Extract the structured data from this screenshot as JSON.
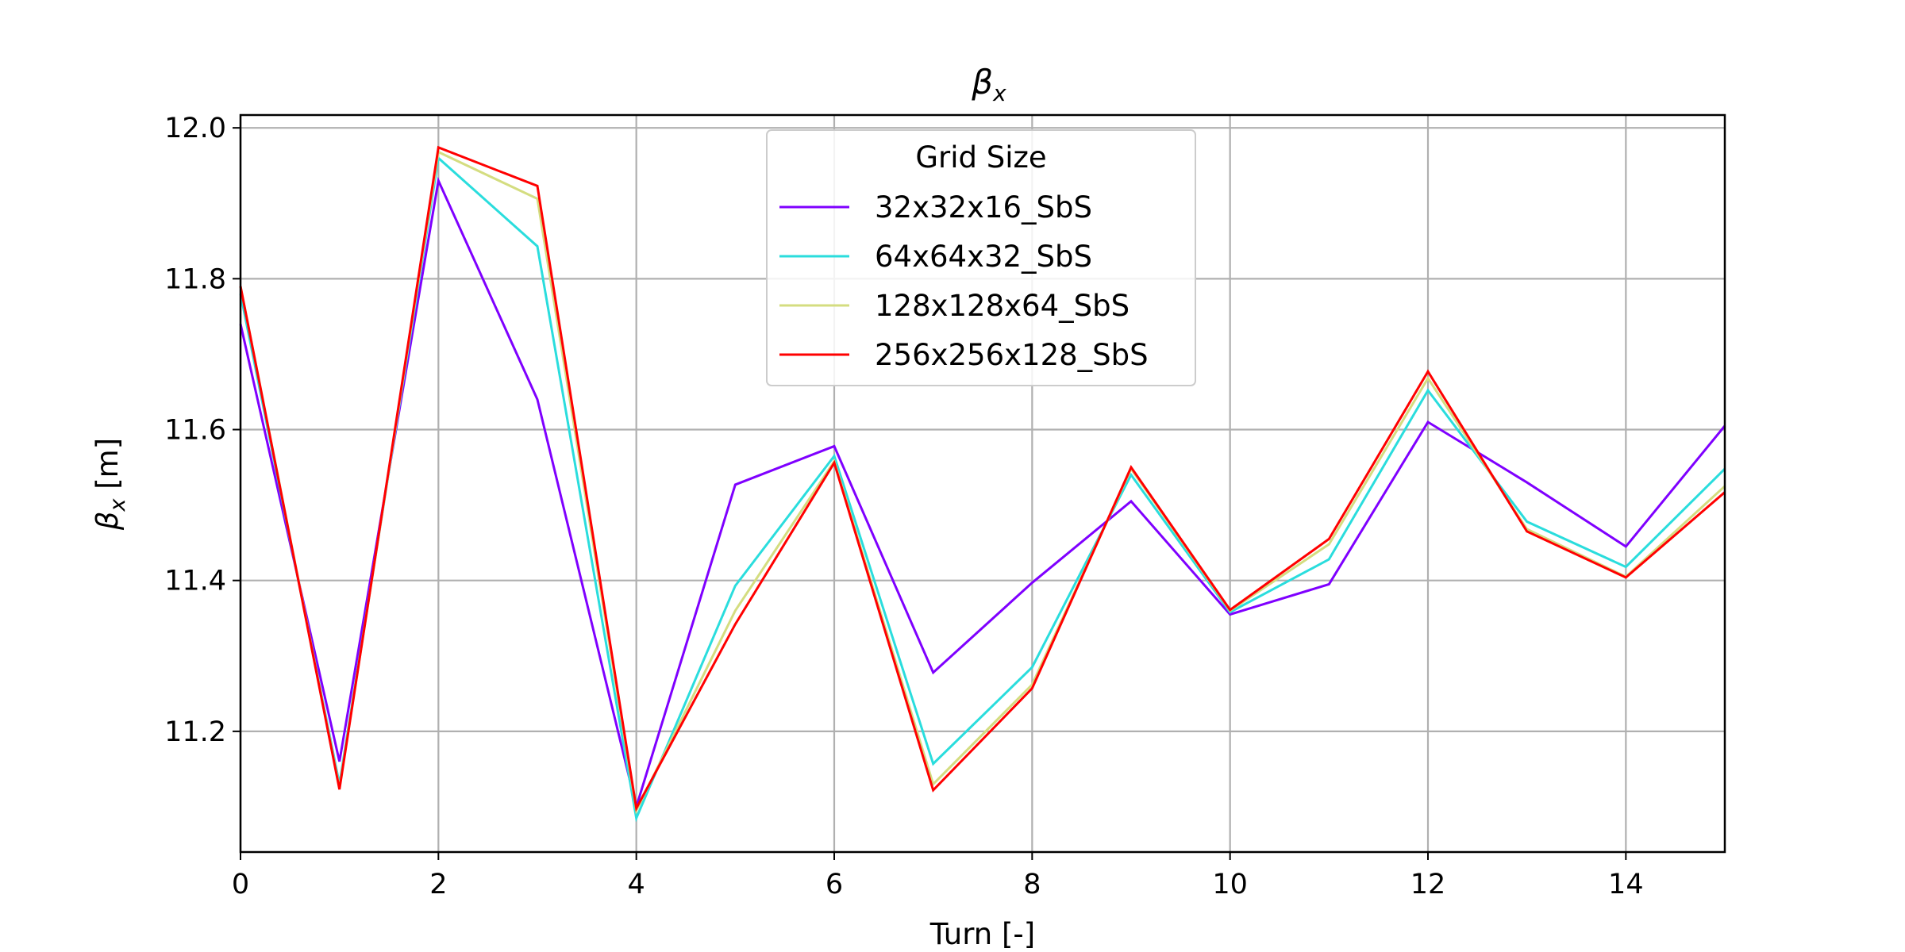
{
  "chart_data": {
    "type": "line",
    "title": "β_x",
    "title_main": "β",
    "title_sub": "x",
    "xlabel": "Turn [-]",
    "ylabel_main": "β",
    "ylabel_sub": "x",
    "ylabel_rest": " [m]",
    "xlim": [
      0,
      15
    ],
    "ylim": [
      11.04,
      12.017
    ],
    "xticks": [
      0,
      2,
      4,
      6,
      8,
      10,
      12,
      14
    ],
    "yticks": [
      11.2,
      11.4,
      11.6,
      11.8,
      12.0
    ],
    "xtick_labels": [
      "0",
      "2",
      "4",
      "6",
      "8",
      "10",
      "12",
      "14"
    ],
    "ytick_labels": [
      "11.2",
      "11.4",
      "11.6",
      "11.8",
      "12.0"
    ],
    "grid": true,
    "legend_title": "Grid Size",
    "legend_position": "top-center",
    "x": [
      0,
      1,
      2,
      3,
      4,
      5,
      6,
      7,
      8,
      9,
      10,
      11,
      12,
      13,
      14,
      15
    ],
    "series": [
      {
        "name": "32x32x16_SbS",
        "color": "#7f00ff",
        "values": [
          11.74,
          11.16,
          11.93,
          11.64,
          11.1,
          11.527,
          11.578,
          11.278,
          11.397,
          11.505,
          11.355,
          11.395,
          11.61,
          11.53,
          11.445,
          11.605
        ]
      },
      {
        "name": "64x64x32_SbS",
        "color": "#2adddd",
        "values": [
          11.78,
          11.13,
          11.96,
          11.843,
          11.085,
          11.393,
          11.565,
          11.157,
          11.285,
          11.54,
          11.358,
          11.428,
          11.652,
          11.478,
          11.418,
          11.548
        ]
      },
      {
        "name": "128x128x64_SbS",
        "color": "#d4dd80",
        "values": [
          11.79,
          11.125,
          11.968,
          11.906,
          11.095,
          11.36,
          11.558,
          11.13,
          11.262,
          11.548,
          11.36,
          11.448,
          11.668,
          11.468,
          11.405,
          11.525
        ]
      },
      {
        "name": "256x256x128_SbS",
        "color": "#ff0000",
        "values": [
          11.79,
          11.123,
          11.974,
          11.923,
          11.098,
          11.342,
          11.556,
          11.122,
          11.257,
          11.55,
          11.361,
          11.455,
          11.677,
          11.465,
          11.404,
          11.517
        ]
      }
    ]
  }
}
